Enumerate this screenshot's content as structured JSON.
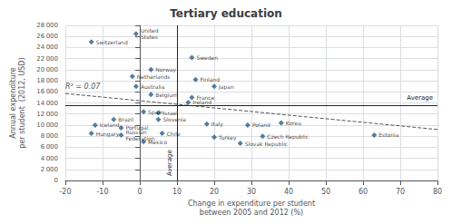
{
  "chart_data": {
    "type": "scatter",
    "title": "Tertiary education",
    "y_label": [
      "Annual expenditure",
      "per student  (2012, USD)"
    ],
    "x_label": [
      "Change in expenditure per student",
      "between 2005 and 2012 (%)"
    ],
    "xlim": [
      -20,
      80
    ],
    "xticks": [
      -20,
      -10,
      0,
      10,
      20,
      30,
      40,
      50,
      60,
      70,
      80
    ],
    "ylim": [
      0,
      28000
    ],
    "yticks": [
      0,
      {
        "value": 2000,
        "label": "2 000"
      },
      {
        "value": 4000,
        "label": "4 000"
      },
      {
        "value": 6000,
        "label": "6 000"
      },
      {
        "value": 8000,
        "label": "8 000"
      },
      {
        "value": 10000,
        "label": "10 000"
      },
      {
        "value": 12000,
        "label": "12 000"
      },
      {
        "value": 14000,
        "label": "14 000"
      },
      {
        "value": 16000,
        "label": "16 000"
      },
      {
        "value": 18000,
        "label": "18 000"
      },
      {
        "value": 20000,
        "label": "20 000"
      },
      {
        "value": 22000,
        "label": "22 000"
      },
      {
        "value": 24000,
        "label": "24 000"
      },
      {
        "value": 26000,
        "label": "26 000"
      },
      {
        "value": 28000,
        "label": "28 000"
      }
    ],
    "grid": true,
    "color": "#2b5c8a",
    "marker": "diamond",
    "labels": [
      "Switzerland",
      "United\nStates",
      "Norway",
      "Netherlands",
      "Australia",
      "Sweden",
      "Finland",
      "Japan",
      "Belgium",
      "France",
      "Ireland",
      "Spain",
      "Israel",
      "Brazil",
      "Portugal",
      "Slovenia",
      "Chile",
      "Iceland",
      "Hungary",
      "Russian\nFederation",
      "Mexico",
      "Italy",
      "Poland",
      "Turkey",
      "Slovak Republic",
      "Czech Republic",
      "Korea",
      "Estonia"
    ],
    "x": [
      -13,
      -1,
      3,
      -2,
      -1,
      14,
      15,
      20,
      3,
      14,
      13,
      1,
      5,
      -7,
      -5,
      5,
      6,
      -12,
      -13,
      -5,
      1,
      18,
      29,
      20,
      27,
      33,
      38,
      63
    ],
    "values": [
      25000,
      26500,
      20000,
      18800,
      17000,
      22200,
      18200,
      17000,
      15500,
      15000,
      14100,
      12400,
      12200,
      11000,
      9500,
      11000,
      8500,
      10000,
      8500,
      8200,
      7000,
      10200,
      10000,
      7800,
      6700,
      8000,
      10400,
      8200
    ],
    "average": {
      "x": 10,
      "y": 13500,
      "label": "Average",
      "color": "#222222"
    },
    "trend": {
      "x": [
        -20,
        80
      ],
      "y": [
        15700,
        9200
      ],
      "color": "#555555",
      "line_style": "dashed",
      "annotation": "R² = 0.07"
    }
  }
}
